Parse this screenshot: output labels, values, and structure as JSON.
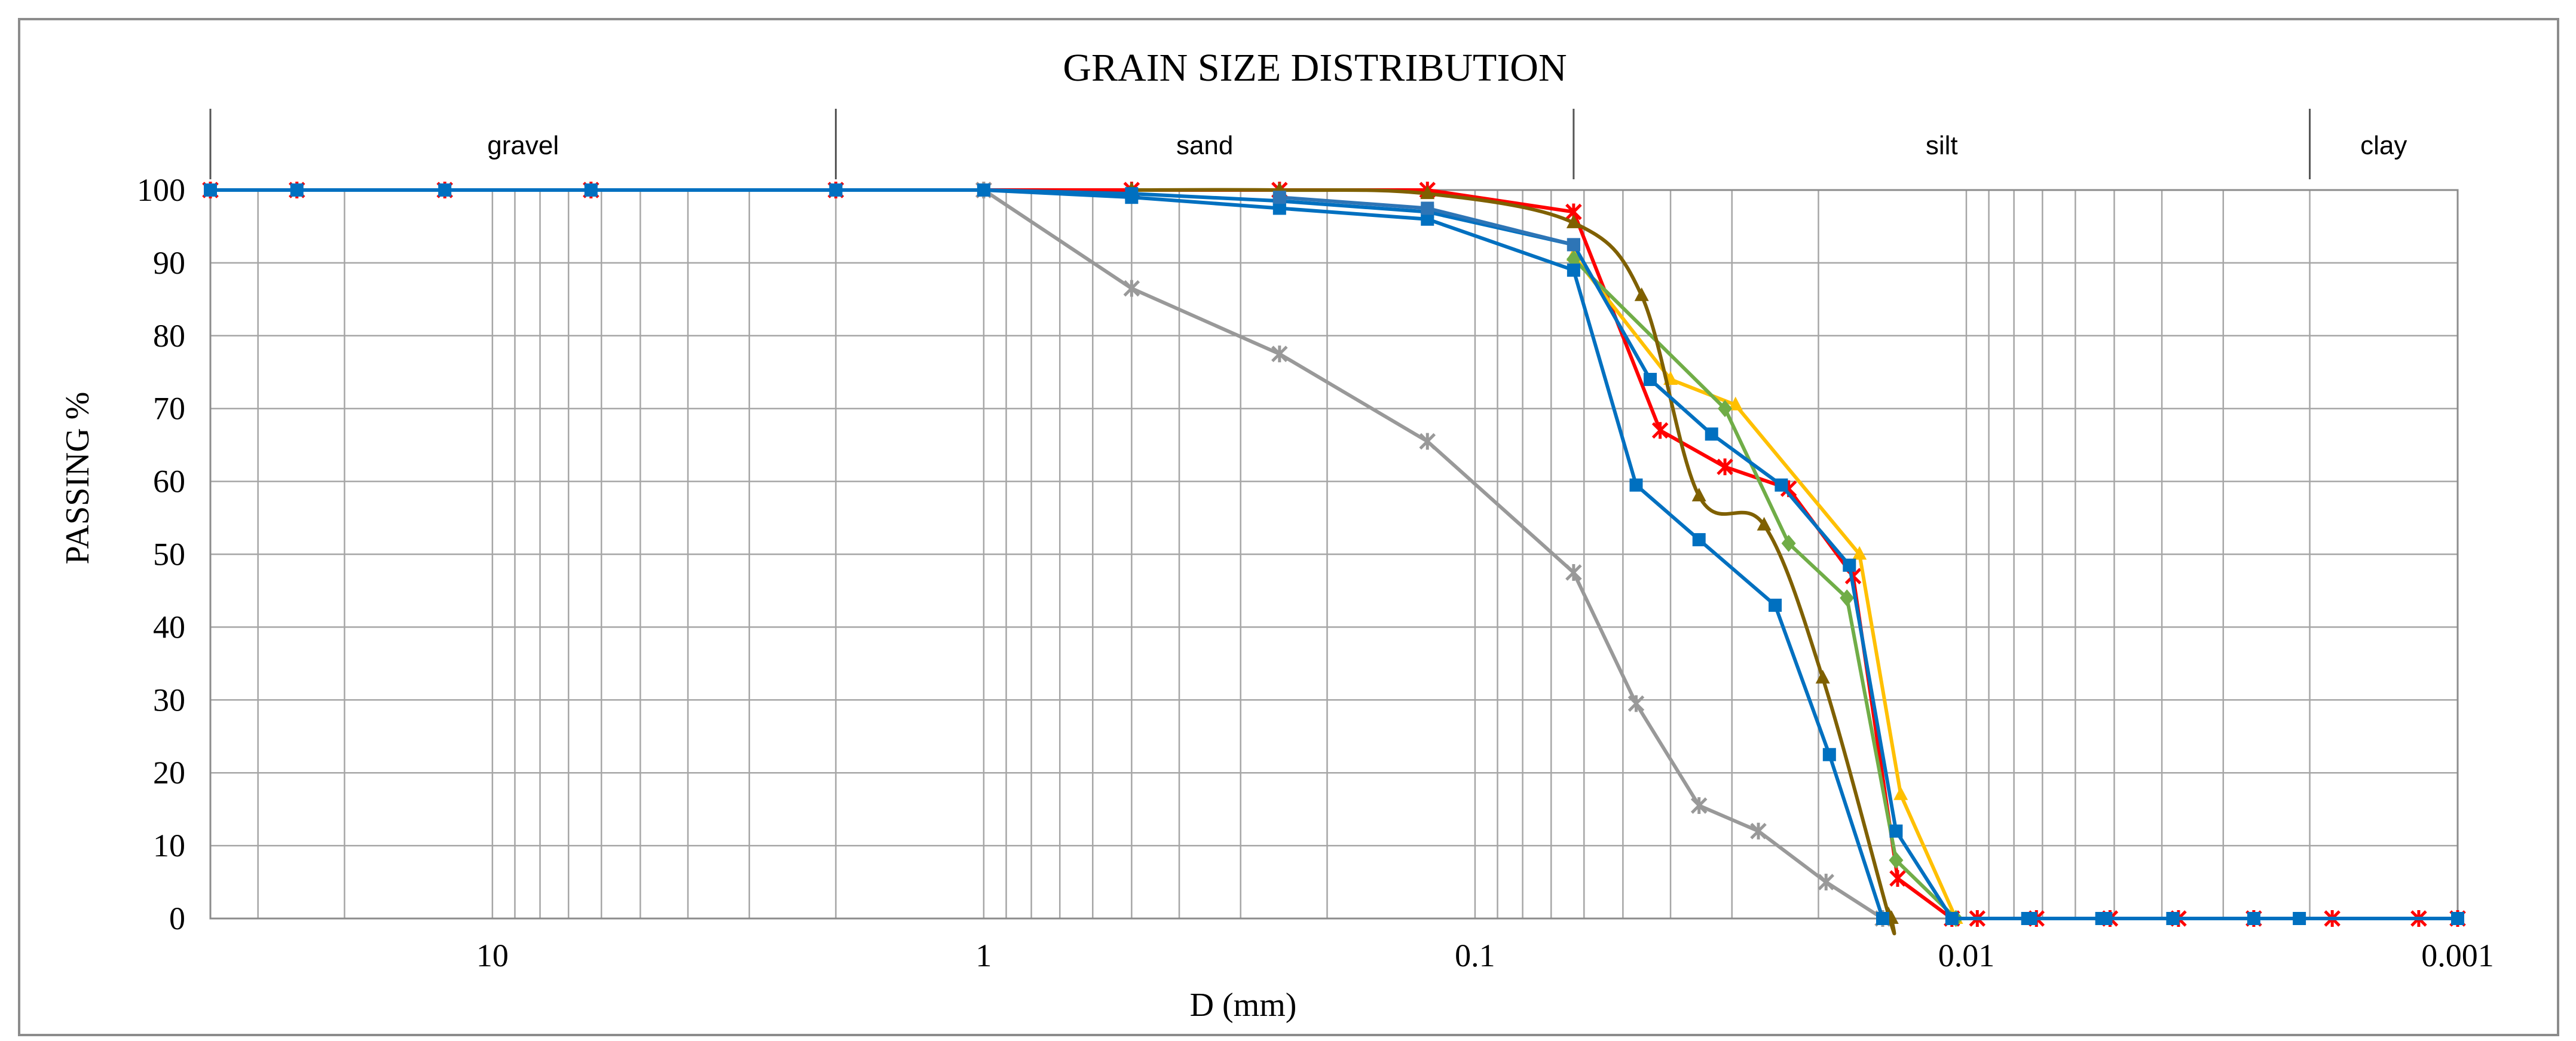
{
  "chart_data": {
    "type": "line",
    "title": "GRAIN SIZE DISTRIBUTION",
    "xlabel": "D (mm)",
    "ylabel": "PASSING  %",
    "x_scale": "log",
    "x_reversed": true,
    "xlim": [
      37.5,
      0.001
    ],
    "ylim": [
      0,
      100
    ],
    "grid": true,
    "x_tick_values": [
      10,
      1,
      0.1,
      0.01,
      0.001
    ],
    "x_tick_labels": [
      "10",
      "1",
      "0.1",
      "0.01",
      "0.001"
    ],
    "y_ticks": [
      0,
      10,
      20,
      30,
      40,
      50,
      60,
      70,
      80,
      90,
      100
    ],
    "zones": [
      {
        "label": "gravel",
        "from": 37.5,
        "to": 2
      },
      {
        "label": "sand",
        "from": 2,
        "to": 0.063
      },
      {
        "label": "silt",
        "from": 0.063,
        "to": 0.002
      },
      {
        "label": "clay",
        "from": 0.002,
        "to": 0.001
      }
    ],
    "series": [
      {
        "name": "red",
        "color": "#FF0000",
        "marker": "star",
        "x": [
          37.5,
          25,
          12.5,
          6.3,
          2,
          1,
          0.5,
          0.25,
          0.125,
          0.063,
          0.042,
          0.031,
          0.023,
          0.017,
          0.0138,
          0.0107,
          0.0095,
          0.0072,
          0.0051,
          0.0037,
          0.0026,
          0.0018,
          0.0012,
          0.001
        ],
        "y": [
          100,
          100,
          100,
          100,
          100,
          100,
          100,
          100,
          100,
          97,
          67,
          62,
          59,
          47,
          5.5,
          0,
          0,
          0,
          0,
          0,
          0,
          0,
          0,
          0
        ]
      },
      {
        "name": "gray",
        "color": "#999999",
        "marker": "star",
        "x": [
          1,
          0.5,
          0.25,
          0.125,
          0.063,
          0.047,
          0.035,
          0.0265,
          0.0193,
          0.0148
        ],
        "y": [
          100,
          86.5,
          77.5,
          65.5,
          47.5,
          29.5,
          15.5,
          12,
          5,
          0
        ]
      },
      {
        "name": "yellow",
        "color": "#FFC000",
        "marker": "triangle",
        "x": [
          0.063,
          0.04,
          0.0295,
          0.0165,
          0.0136,
          0.0105
        ],
        "y": [
          91,
          74,
          70.5,
          50,
          17,
          0
        ]
      },
      {
        "name": "green",
        "color": "#70AD47",
        "marker": "diamond",
        "x": [
          0.063,
          0.031,
          0.023,
          0.0175,
          0.0139,
          0.0105
        ],
        "y": [
          90.5,
          70,
          51.5,
          44,
          8,
          0
        ]
      },
      {
        "name": "olive",
        "color": "#7F6000",
        "marker": "triangle",
        "x": [
          0.5,
          0.25,
          0.125,
          0.063,
          0.0458,
          0.035,
          0.0258,
          0.0196,
          0.0144,
          0.0142
        ],
        "y": [
          100,
          100,
          99.5,
          95.5,
          85.5,
          58,
          54,
          33,
          0.5,
          0
        ],
        "smooth": true
      },
      {
        "name": "blue",
        "color": "#0070C0",
        "marker": "square",
        "x": [
          37.5,
          25,
          12.5,
          6.3,
          2,
          1,
          0.5,
          0.25,
          0.125,
          0.063,
          0.044,
          0.033,
          0.0238,
          0.0173,
          0.0139,
          0.0107,
          0.0075,
          0.0074,
          0.0053,
          0.0052,
          0.0038,
          0.0026,
          0.0021,
          0.001
        ],
        "y": [
          100,
          100,
          100,
          100,
          100,
          100,
          99.5,
          98.5,
          97,
          92.5,
          74,
          66.5,
          59.5,
          48.5,
          12,
          0,
          0,
          0,
          0,
          0,
          0,
          0,
          0,
          0
        ]
      },
      {
        "name": "blue-2",
        "color": "#0070C0",
        "marker": "square",
        "x": [
          2,
          1,
          0.5,
          0.25,
          0.125,
          0.063,
          0.047,
          0.035,
          0.0245,
          0.019,
          0.0148
        ],
        "y": [
          100,
          100,
          99,
          97.5,
          96,
          89,
          59.5,
          52,
          43,
          22.5,
          0
        ]
      },
      {
        "name": "teal",
        "color": "#2E75B6",
        "marker": "square",
        "x": [
          0.25,
          0.125,
          0.063
        ],
        "y": [
          99,
          97.5,
          92.5
        ]
      }
    ]
  }
}
